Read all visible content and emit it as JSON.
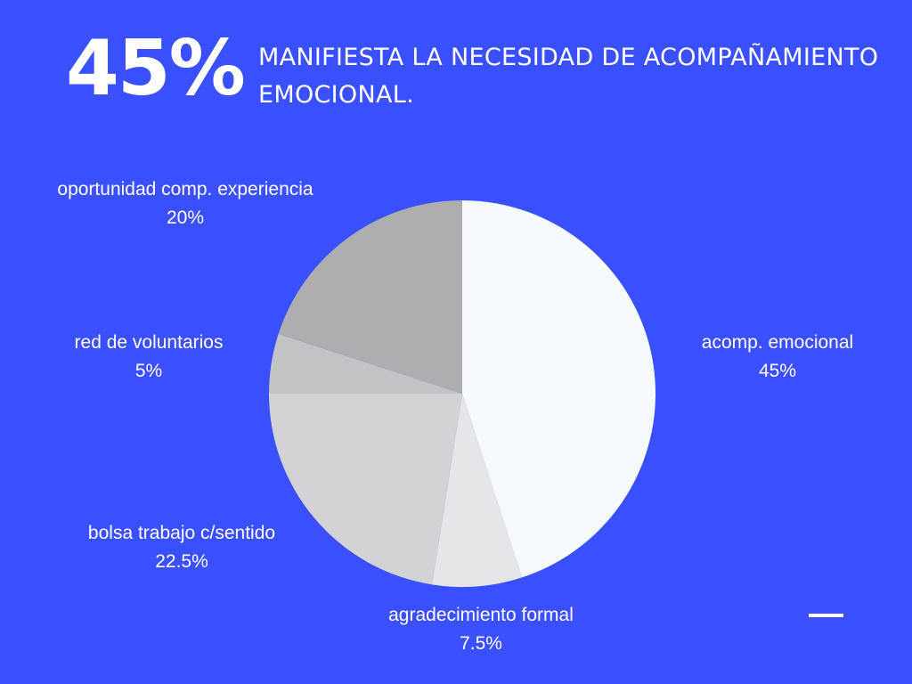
{
  "header": {
    "big_number": "45%",
    "statement": "MANIFIESTA LA NECESIDAD DE ACOMPAÑAMIENTO EMOCIONAL."
  },
  "colors": {
    "background": "#3a50ff",
    "text": "#ffffff"
  },
  "chart_data": {
    "type": "pie",
    "start_angle_deg": 0,
    "direction": "clockwise",
    "slices": [
      {
        "label": "acomp. emocional",
        "value": 45,
        "value_label": "45%",
        "color": "#f7fafd"
      },
      {
        "label": "agradecimiento formal",
        "value": 7.5,
        "value_label": "7.5%",
        "color": "#e6e6e9"
      },
      {
        "label": "bolsa trabajo c/sentido",
        "value": 22.5,
        "value_label": "22.5%",
        "color": "#d3d3d6"
      },
      {
        "label": "red de voluntarios",
        "value": 5,
        "value_label": "5%",
        "color": "#c3c3c6"
      },
      {
        "label": "oportunidad comp. experiencia",
        "value": 20,
        "value_label": "20%",
        "color": "#aeadb0"
      }
    ],
    "legend": "none",
    "labels": "outside"
  }
}
